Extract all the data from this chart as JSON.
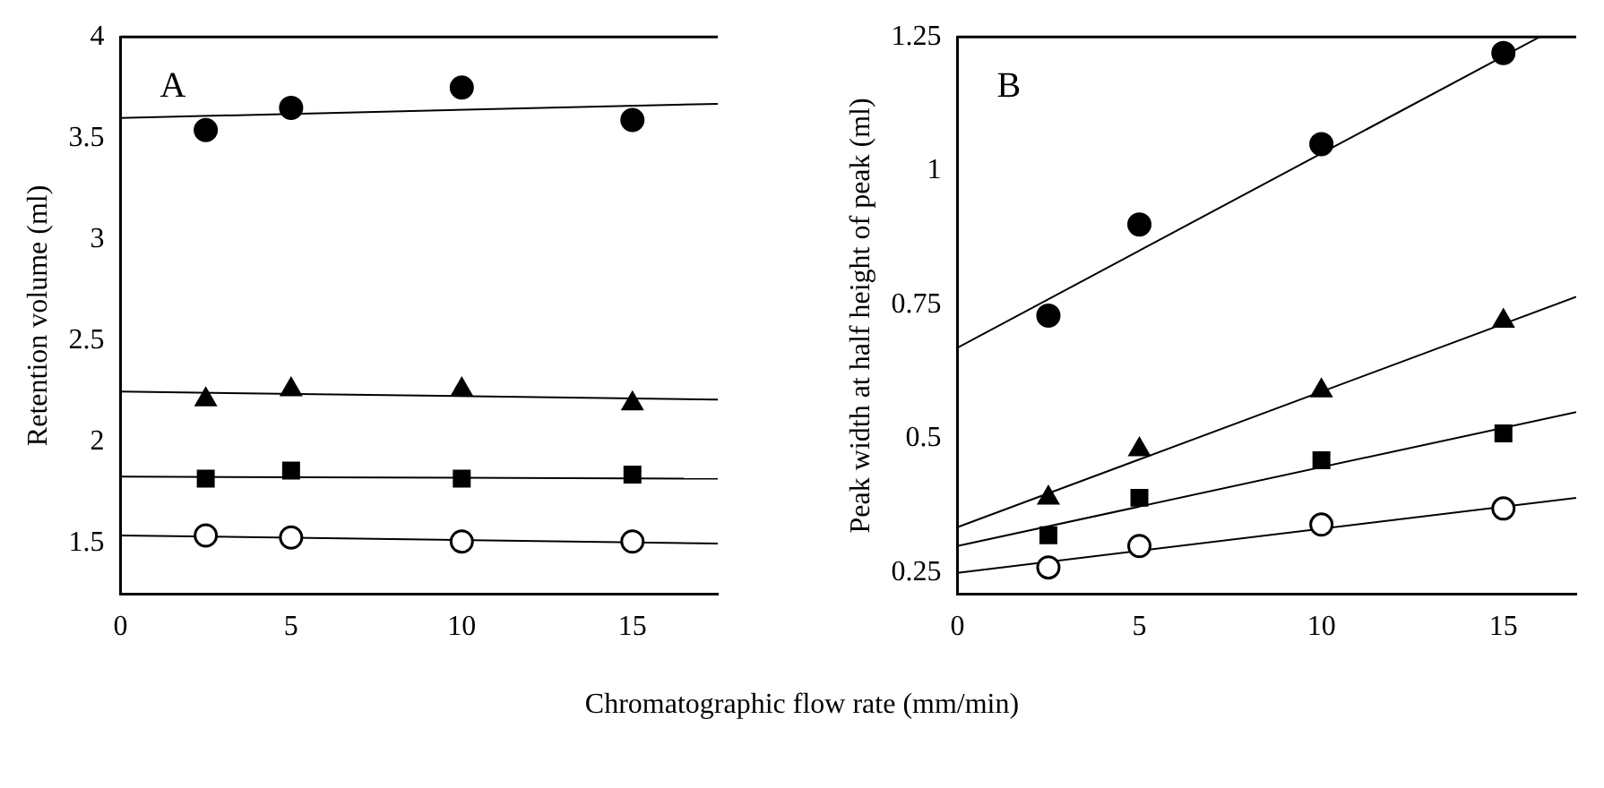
{
  "chart_data": [
    {
      "type": "scatter",
      "annotations": [
        "A"
      ],
      "xlabel": "Chromatographic flow rate (mm/min)",
      "ylabel": "Retention volume (ml)",
      "x": [
        2.5,
        5,
        10,
        15
      ],
      "xlim": [
        0,
        17.5
      ],
      "xticks": [
        0,
        5,
        10,
        15
      ],
      "ylim": [
        1.25,
        4
      ],
      "yticks": [
        1.5,
        2,
        2.5,
        3,
        3.5,
        4
      ],
      "grid": false,
      "legend": false,
      "series": [
        {
          "marker": "circle",
          "color": "#000000",
          "values": [
            3.54,
            3.65,
            3.75,
            3.59
          ]
        },
        {
          "marker": "triangle",
          "color": "#000000",
          "values": [
            2.21,
            2.26,
            2.26,
            2.19
          ]
        },
        {
          "marker": "square",
          "color": "#000000",
          "values": [
            1.82,
            1.86,
            1.82,
            1.84
          ]
        },
        {
          "marker": "circle",
          "color": "#ffffff",
          "values": [
            1.54,
            1.53,
            1.51,
            1.51
          ]
        },
        {
          "type": "line",
          "marker": "none",
          "color": "#000000",
          "x": [
            0,
            17.5
          ],
          "values": [
            3.6,
            3.67
          ]
        },
        {
          "type": "line",
          "marker": "none",
          "color": "#000000",
          "x": [
            0,
            17.5
          ],
          "values": [
            2.25,
            2.21
          ]
        },
        {
          "type": "line",
          "marker": "none",
          "color": "#000000",
          "x": [
            0,
            17.5
          ],
          "values": [
            1.83,
            1.82
          ]
        },
        {
          "type": "line",
          "marker": "none",
          "color": "#000000",
          "x": [
            0,
            17.5
          ],
          "values": [
            1.54,
            1.5
          ]
        }
      ]
    },
    {
      "type": "scatter",
      "annotations": [
        "B"
      ],
      "ylabel": "Peak width at half height of peak (ml)",
      "x": [
        2.5,
        5,
        10,
        15
      ],
      "xlim": [
        0,
        17
      ],
      "xticks": [
        0,
        5,
        10,
        15
      ],
      "ylim": [
        0.21,
        1.25
      ],
      "yticks": [
        0.25,
        0.5,
        0.75,
        1,
        1.25
      ],
      "grid": false,
      "legend": false,
      "series": [
        {
          "marker": "circle",
          "color": "#000000",
          "values": [
            0.73,
            0.9,
            1.05,
            1.22
          ]
        },
        {
          "marker": "triangle",
          "color": "#000000",
          "values": [
            0.39,
            0.48,
            0.59,
            0.72
          ]
        },
        {
          "marker": "square",
          "color": "#000000",
          "values": [
            0.32,
            0.39,
            0.46,
            0.51
          ]
        },
        {
          "marker": "circle",
          "color": "#ffffff",
          "values": [
            0.26,
            0.3,
            0.34,
            0.37
          ]
        },
        {
          "type": "line",
          "marker": "none",
          "color": "#000000",
          "x": [
            0,
            16
          ],
          "values": [
            0.67,
            1.25
          ]
        },
        {
          "type": "line",
          "marker": "none",
          "color": "#000000",
          "x": [
            0,
            17
          ],
          "values": [
            0.335,
            0.765
          ]
        },
        {
          "type": "line",
          "marker": "none",
          "color": "#000000",
          "x": [
            0,
            17
          ],
          "values": [
            0.3,
            0.55
          ]
        },
        {
          "type": "line",
          "marker": "none",
          "color": "#000000",
          "x": [
            0,
            17
          ],
          "values": [
            0.25,
            0.39
          ]
        }
      ]
    }
  ]
}
